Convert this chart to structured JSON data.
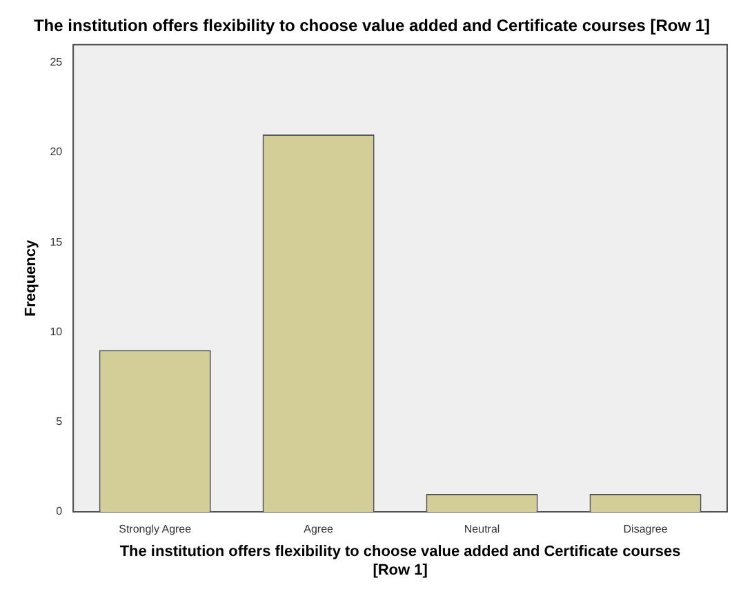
{
  "chart_data": {
    "type": "bar",
    "title": "The institution offers flexibility to choose value added and Certificate courses [Row 1]",
    "xlabel": "The institution offers flexibility to choose value added and Certificate courses [Row 1]",
    "ylabel": "Frequency",
    "categories": [
      "Strongly Agree",
      "Agree",
      "Neutral",
      "Disagree"
    ],
    "values": [
      9,
      21,
      1,
      1
    ],
    "color": "#d3cd97",
    "ylim": [
      0,
      26
    ],
    "yticks": [
      0,
      5,
      10,
      15,
      20,
      25
    ],
    "grid": false,
    "legend": false
  }
}
